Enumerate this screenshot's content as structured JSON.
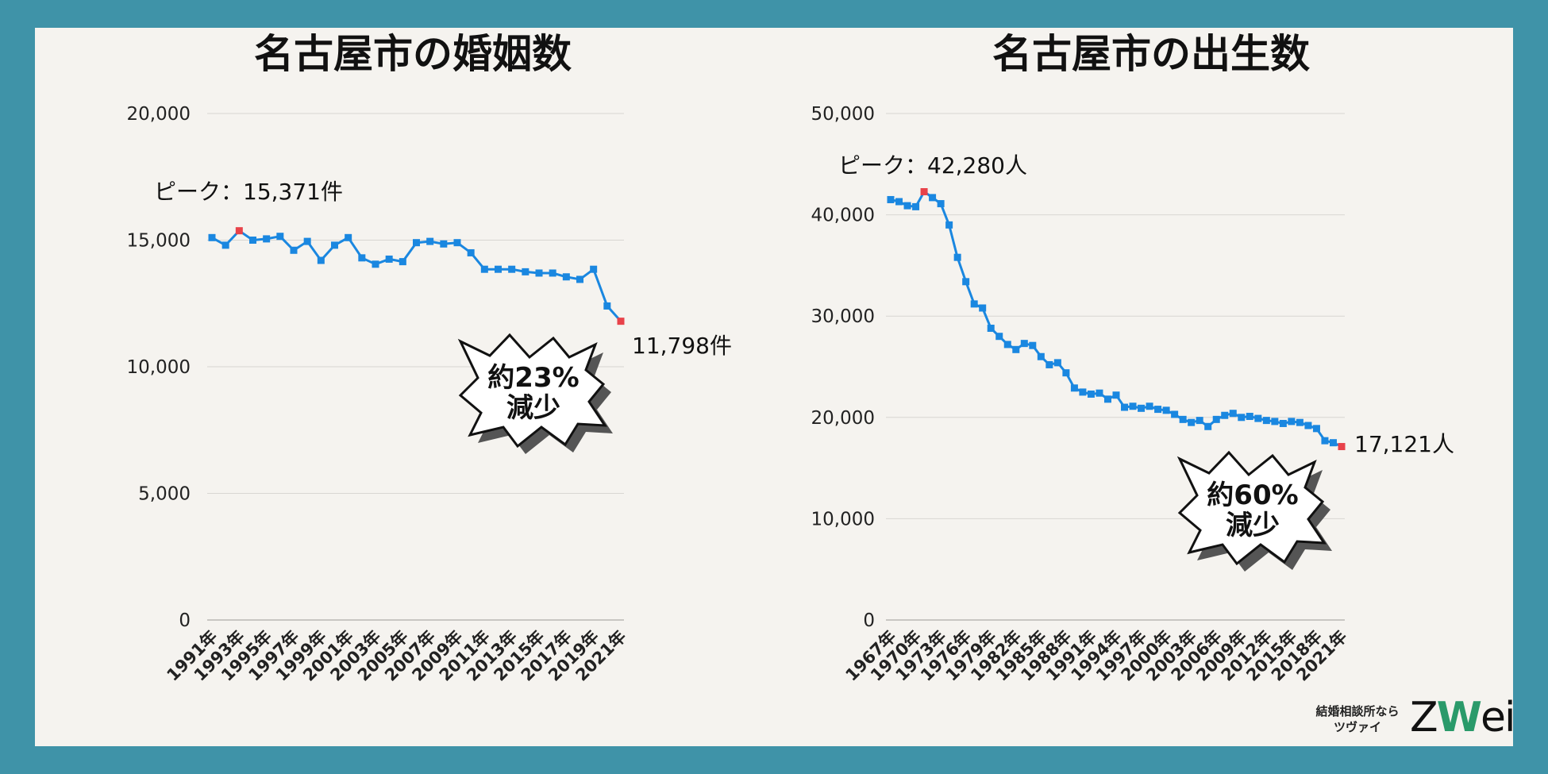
{
  "colors": {
    "line": "#1a87e0",
    "highlight": "#e8424a",
    "frame": "#3f93a8",
    "panel": "#f5f3ef",
    "grid": "#d8d6d2",
    "text": "#222222"
  },
  "brand": {
    "line1": "結婚相談所なら",
    "line2": "ツヴァイ",
    "logo_z": "Z",
    "logo_w": "W",
    "logo_ei": "ei"
  },
  "chart_data": [
    {
      "type": "line",
      "title": "名古屋市の婚姻数",
      "ylim": [
        0,
        20000
      ],
      "yticks": [
        0,
        5000,
        10000,
        15000,
        20000
      ],
      "ytick_labels": [
        "0",
        "5,000",
        "10,000",
        "15,000",
        "20,000"
      ],
      "x": [
        1991,
        1992,
        1993,
        1994,
        1995,
        1996,
        1997,
        1998,
        1999,
        2000,
        2001,
        2002,
        2003,
        2004,
        2005,
        2006,
        2007,
        2008,
        2009,
        2010,
        2011,
        2012,
        2013,
        2014,
        2015,
        2016,
        2017,
        2018,
        2019,
        2020,
        2021
      ],
      "xtick_labels": [
        "1991年",
        "1993年",
        "1995年",
        "1997年",
        "1999年",
        "2001年",
        "2003年",
        "2005年",
        "2007年",
        "2009年",
        "2011年",
        "2013年",
        "2015年",
        "2017年",
        "2019年",
        "2021年"
      ],
      "values": [
        15100,
        14800,
        15371,
        15000,
        15050,
        15150,
        14600,
        14950,
        14200,
        14800,
        15100,
        14300,
        14050,
        14250,
        14150,
        14900,
        14950,
        14850,
        14900,
        14500,
        13850,
        13850,
        13850,
        13750,
        13700,
        13700,
        13550,
        13450,
        13850,
        12400,
        11798
      ],
      "peak_index": 2,
      "peak_label": "ピーク：15,371件",
      "last_label": "11,798件",
      "badge": [
        "約23%",
        "減少"
      ]
    },
    {
      "type": "line",
      "title": "名古屋市の出生数",
      "ylim": [
        0,
        50000
      ],
      "yticks": [
        0,
        10000,
        20000,
        30000,
        40000,
        50000
      ],
      "ytick_labels": [
        "0",
        "10,000",
        "20,000",
        "30,000",
        "40,000",
        "50,000"
      ],
      "x": [
        1967,
        1968,
        1969,
        1970,
        1971,
        1972,
        1973,
        1974,
        1975,
        1976,
        1977,
        1978,
        1979,
        1980,
        1981,
        1982,
        1983,
        1984,
        1985,
        1986,
        1987,
        1988,
        1989,
        1990,
        1991,
        1992,
        1993,
        1994,
        1995,
        1996,
        1997,
        1998,
        1999,
        2000,
        2001,
        2002,
        2003,
        2004,
        2005,
        2006,
        2007,
        2008,
        2009,
        2010,
        2011,
        2012,
        2013,
        2014,
        2015,
        2016,
        2017,
        2018,
        2019,
        2020,
        2021
      ],
      "xtick_labels": [
        "1967年",
        "1970年",
        "1973年",
        "1976年",
        "1979年",
        "1982年",
        "1985年",
        "1988年",
        "1991年",
        "1994年",
        "1997年",
        "2000年",
        "2003年",
        "2006年",
        "2009年",
        "2012年",
        "2015年",
        "2018年",
        "2021年"
      ],
      "values": [
        41500,
        41300,
        40900,
        40800,
        42280,
        41700,
        41100,
        39000,
        35800,
        33400,
        31200,
        30800,
        28800,
        28000,
        27200,
        26700,
        27300,
        27100,
        26000,
        25200,
        25400,
        24400,
        22900,
        22500,
        22300,
        22400,
        21800,
        22200,
        21000,
        21100,
        20900,
        21100,
        20800,
        20700,
        20300,
        19800,
        19500,
        19700,
        19100,
        19800,
        20200,
        20400,
        20000,
        20100,
        19900,
        19700,
        19600,
        19400,
        19600,
        19500,
        19200,
        18900,
        17700,
        17500,
        17121
      ],
      "peak_index": 4,
      "peak_label": "ピーク：42,280人",
      "last_label": "17,121人",
      "badge": [
        "約60%",
        "減少"
      ]
    }
  ]
}
